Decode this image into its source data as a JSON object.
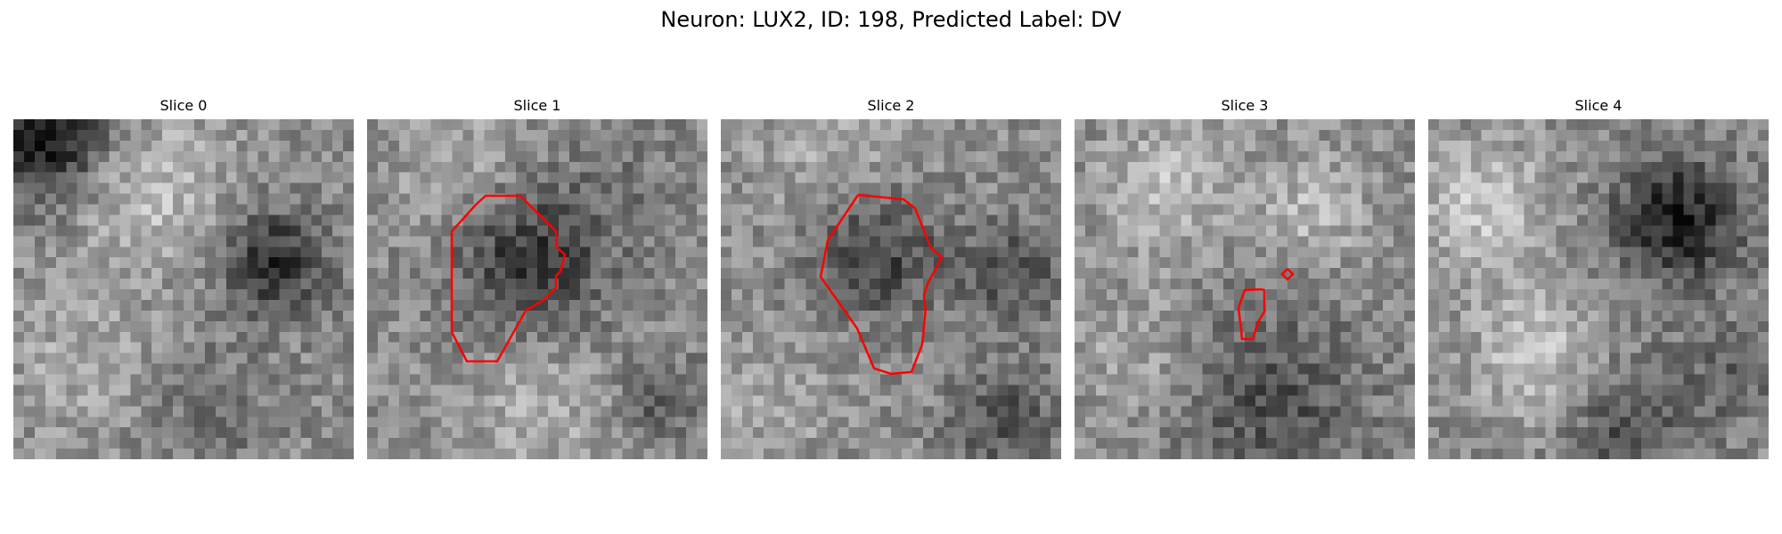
{
  "figure": {
    "title": "Neuron: LUX2, ID: 198, Predicted Label: DV"
  },
  "panels": [
    {
      "title": "Slice 0"
    },
    {
      "title": "Slice 1"
    },
    {
      "title": "Slice 2"
    },
    {
      "title": "Slice 3"
    },
    {
      "title": "Slice 4"
    }
  ],
  "colors": {
    "contour": "#ff0000",
    "colormap": "gray"
  }
}
